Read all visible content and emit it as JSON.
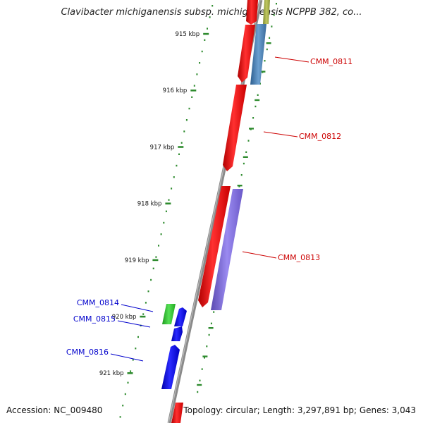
{
  "title": "Clavibacter michiganensis subsp. michiganensis NCPPB 382, co...",
  "accession": "Accession: NC_009480",
  "topology": "Topology: circular; Length: 3,297,891 bp; Genes: 3,043",
  "colors": {
    "backbone": "#8a8a8a",
    "tick": "#2e8b2e",
    "forward_gene": "#ee1111",
    "reverse_gene_blue": "#1111ee",
    "label_forward": "#cc0000",
    "label_reverse": "#0000cc",
    "feature_green": "#33cc33",
    "feature_steel": "#4a7fb5",
    "feature_purple": "#7b68d8",
    "feature_olive": "#a0a848"
  },
  "ruler": [
    {
      "label": "915 kbp",
      "pos": 915
    },
    {
      "label": "916 kbp",
      "pos": 916
    },
    {
      "label": "917 kbp",
      "pos": 917
    },
    {
      "label": "918 kbp",
      "pos": 918
    },
    {
      "label": "919 kbp",
      "pos": 919
    },
    {
      "label": "920 kbp",
      "pos": 920
    },
    {
      "label": "921 kbp",
      "pos": 921
    }
  ],
  "genes": [
    {
      "label": "CMM_0811",
      "strand": "forward"
    },
    {
      "label": "CMM_0812",
      "strand": "forward"
    },
    {
      "label": "CMM_0813",
      "strand": "forward"
    },
    {
      "label": "CMM_0814",
      "strand": "reverse"
    },
    {
      "label": "CMM_0815",
      "strand": "reverse"
    },
    {
      "label": "CMM_0816",
      "strand": "reverse"
    }
  ]
}
